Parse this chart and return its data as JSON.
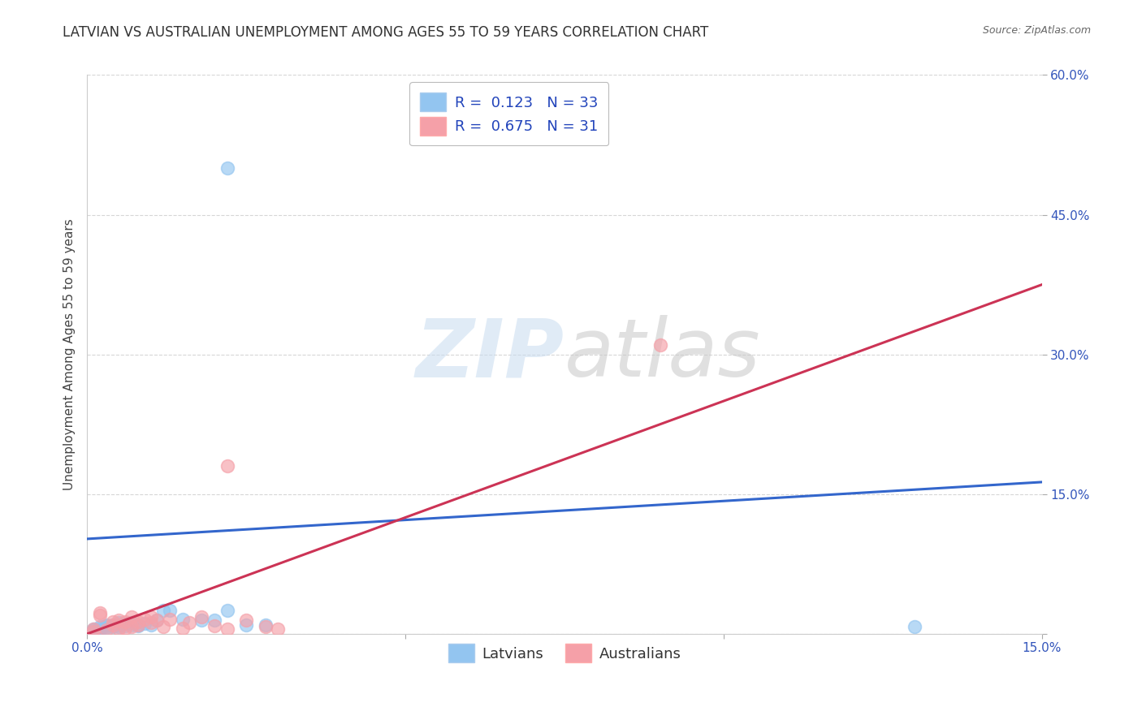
{
  "title": "LATVIAN VS AUSTRALIAN UNEMPLOYMENT AMONG AGES 55 TO 59 YEARS CORRELATION CHART",
  "source": "Source: ZipAtlas.com",
  "ylabel": "Unemployment Among Ages 55 to 59 years",
  "xlim": [
    0.0,
    0.15
  ],
  "ylim": [
    0.0,
    0.6
  ],
  "xticks": [
    0.0,
    0.05,
    0.1,
    0.15
  ],
  "yticks": [
    0.0,
    0.15,
    0.3,
    0.45,
    0.6
  ],
  "latvian_color": "#93C5F0",
  "australian_color": "#F5A0A8",
  "latvian_line_color": "#3366CC",
  "australian_line_color": "#CC3355",
  "background_color": "#FFFFFF",
  "grid_color": "#CCCCCC",
  "R_latvian": 0.123,
  "N_latvian": 33,
  "R_australian": 0.675,
  "N_australian": 31,
  "latvian_x": [
    0.001,
    0.001,
    0.001,
    0.002,
    0.002,
    0.002,
    0.003,
    0.003,
    0.003,
    0.004,
    0.004,
    0.005,
    0.005,
    0.005,
    0.006,
    0.006,
    0.007,
    0.007,
    0.008,
    0.008,
    0.009,
    0.01,
    0.011,
    0.012,
    0.013,
    0.015,
    0.018,
    0.02,
    0.022,
    0.025,
    0.028,
    0.13,
    0.022
  ],
  "latvian_y": [
    0.005,
    0.004,
    0.003,
    0.008,
    0.006,
    0.004,
    0.01,
    0.009,
    0.007,
    0.01,
    0.008,
    0.012,
    0.01,
    0.008,
    0.011,
    0.009,
    0.01,
    0.012,
    0.01,
    0.009,
    0.011,
    0.01,
    0.015,
    0.025,
    0.025,
    0.016,
    0.015,
    0.015,
    0.025,
    0.01,
    0.01,
    0.008,
    0.5
  ],
  "australian_x": [
    0.001,
    0.001,
    0.002,
    0.002,
    0.003,
    0.004,
    0.004,
    0.005,
    0.005,
    0.006,
    0.006,
    0.007,
    0.007,
    0.008,
    0.008,
    0.009,
    0.01,
    0.01,
    0.011,
    0.012,
    0.013,
    0.015,
    0.016,
    0.018,
    0.02,
    0.022,
    0.025,
    0.028,
    0.03,
    0.09,
    0.022
  ],
  "australian_y": [
    0.005,
    0.003,
    0.023,
    0.02,
    0.004,
    0.013,
    0.01,
    0.005,
    0.015,
    0.006,
    0.013,
    0.008,
    0.018,
    0.01,
    0.013,
    0.016,
    0.018,
    0.012,
    0.015,
    0.008,
    0.016,
    0.006,
    0.012,
    0.018,
    0.009,
    0.005,
    0.015,
    0.008,
    0.005,
    0.31,
    0.18
  ],
  "lv_line_x0": 0.0,
  "lv_line_y0": 0.102,
  "lv_line_x1": 0.15,
  "lv_line_y1": 0.163,
  "au_line_x0": 0.0,
  "au_line_y0": 0.0,
  "au_line_x1": 0.15,
  "au_line_y1": 0.375,
  "watermark_line1": "ZIP",
  "watermark_line2": "atlas",
  "title_fontsize": 12,
  "axis_label_fontsize": 11,
  "tick_fontsize": 11,
  "legend_fontsize": 13
}
